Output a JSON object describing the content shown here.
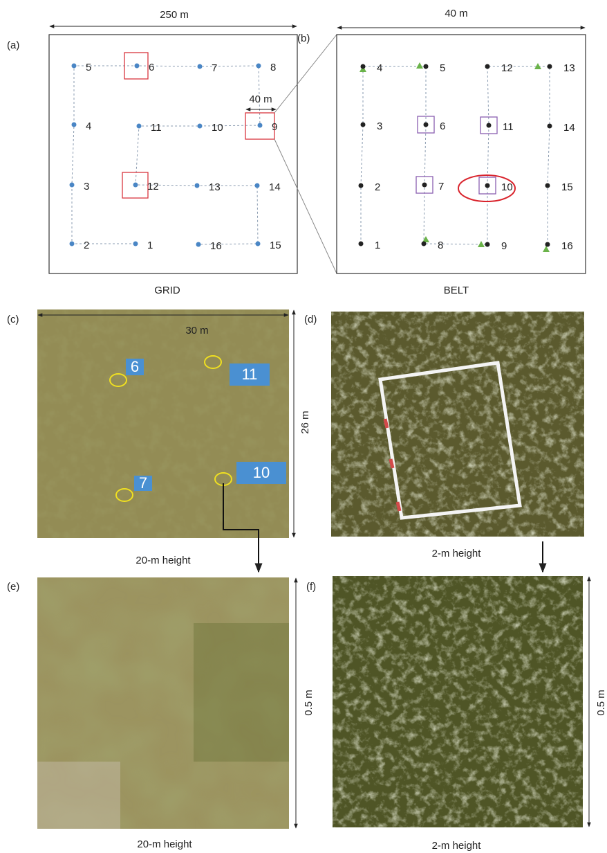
{
  "panel_a": {
    "label": "(a)",
    "width": "250 m",
    "inset_width": "40 m",
    "caption": "GRID",
    "points": [
      "1",
      "2",
      "3",
      "4",
      "5",
      "6",
      "7",
      "8",
      "9",
      "10",
      "11",
      "12",
      "13",
      "14",
      "15",
      "16"
    ]
  },
  "panel_b": {
    "label": "(b)",
    "width": "40 m",
    "caption": "BELT",
    "points": [
      "1",
      "2",
      "3",
      "4",
      "5",
      "6",
      "7",
      "8",
      "9",
      "10",
      "11",
      "12",
      "13",
      "14",
      "15",
      "16"
    ]
  },
  "panel_c": {
    "label": "(c)",
    "width": "30  m",
    "height": "26 m",
    "caption": "20-m height",
    "plots": [
      "6",
      "11",
      "10",
      "7"
    ]
  },
  "panel_d": {
    "label": "(d)",
    "caption": "2-m height"
  },
  "panel_e": {
    "label": "(e)",
    "size": "0.5 m",
    "caption": "20-m height"
  },
  "panel_f": {
    "label": "(f)",
    "size": "0.5 m",
    "caption": "2-m height"
  }
}
